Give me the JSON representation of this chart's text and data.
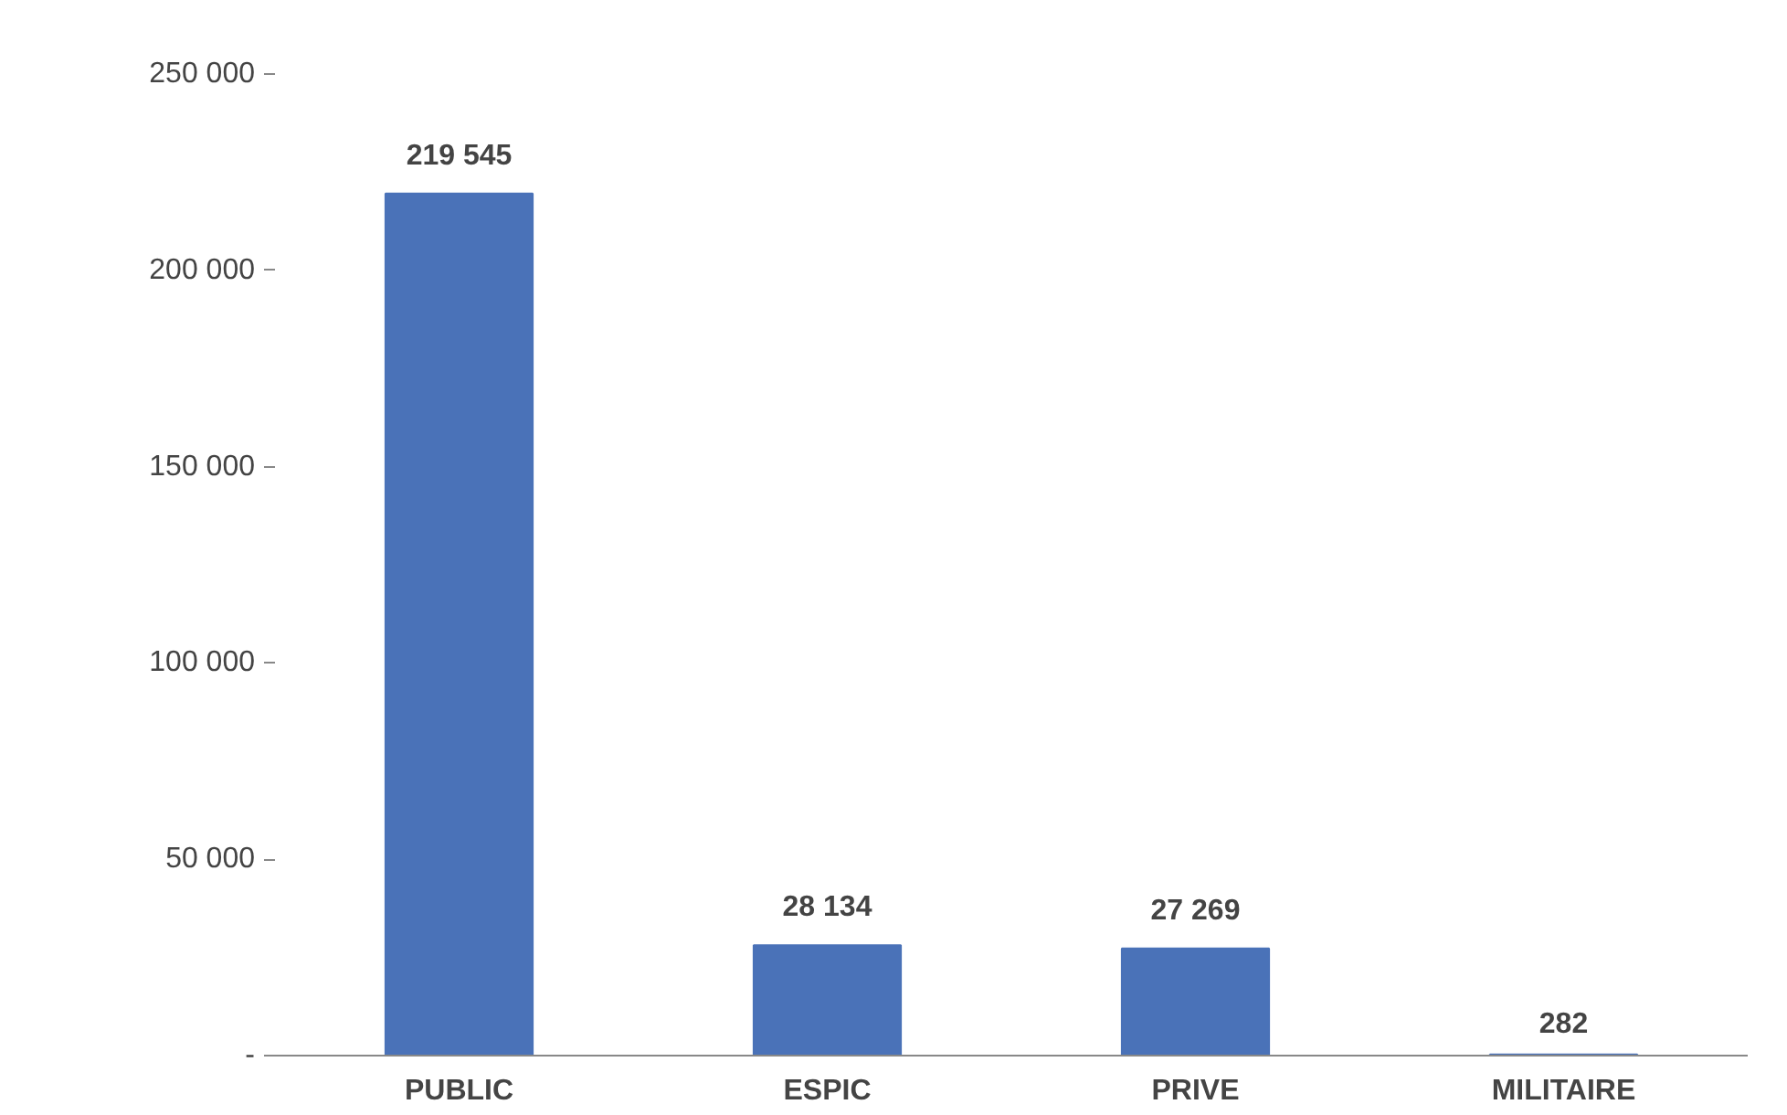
{
  "chart_data": {
    "type": "bar",
    "categories": [
      "PUBLIC",
      "ESPIC",
      "PRIVE",
      "MILITAIRE"
    ],
    "values": [
      219545,
      28134,
      27269,
      282
    ],
    "value_labels": [
      "219 545",
      "28 134",
      "27 269",
      "282"
    ],
    "color": "#4a72b8",
    "ylim": [
      0,
      250000
    ],
    "yticks": [
      {
        "value": 0,
        "label": "-"
      },
      {
        "value": 50000,
        "label": "50 000"
      },
      {
        "value": 100000,
        "label": "100 000"
      },
      {
        "value": 150000,
        "label": "150 000"
      },
      {
        "value": 200000,
        "label": "200 000"
      },
      {
        "value": 250000,
        "label": "250 000"
      }
    ],
    "grid": false
  }
}
